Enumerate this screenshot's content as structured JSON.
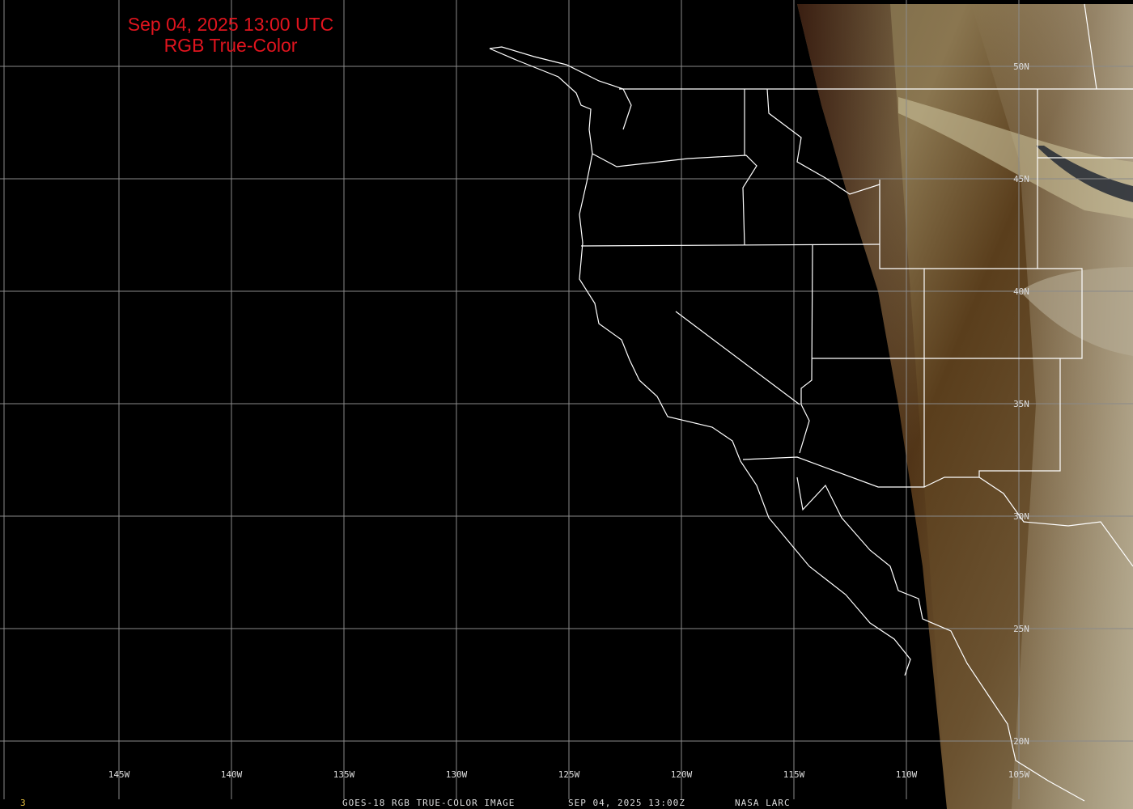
{
  "title": {
    "line1": "Sep 04, 2025 13:00 UTC",
    "line2": "RGB True-Color"
  },
  "footer": {
    "frame": "3",
    "caption": "GOES-18 RGB TRUE-COLOR IMAGE",
    "datetime": "SEP 04, 2025 13:00Z",
    "credit": "NASA LARC"
  },
  "longitude_labels": [
    "145W",
    "140W",
    "135W",
    "130W",
    "125W",
    "120W",
    "115W",
    "110W",
    "105W"
  ],
  "latitude_labels": [
    "50N",
    "45N",
    "40N",
    "35N",
    "30N",
    "25N",
    "20N"
  ],
  "colors": {
    "title": "#e0141e",
    "grid": "#8a8a8a",
    "borders": "#ffffff",
    "frame": "#e8c040"
  }
}
